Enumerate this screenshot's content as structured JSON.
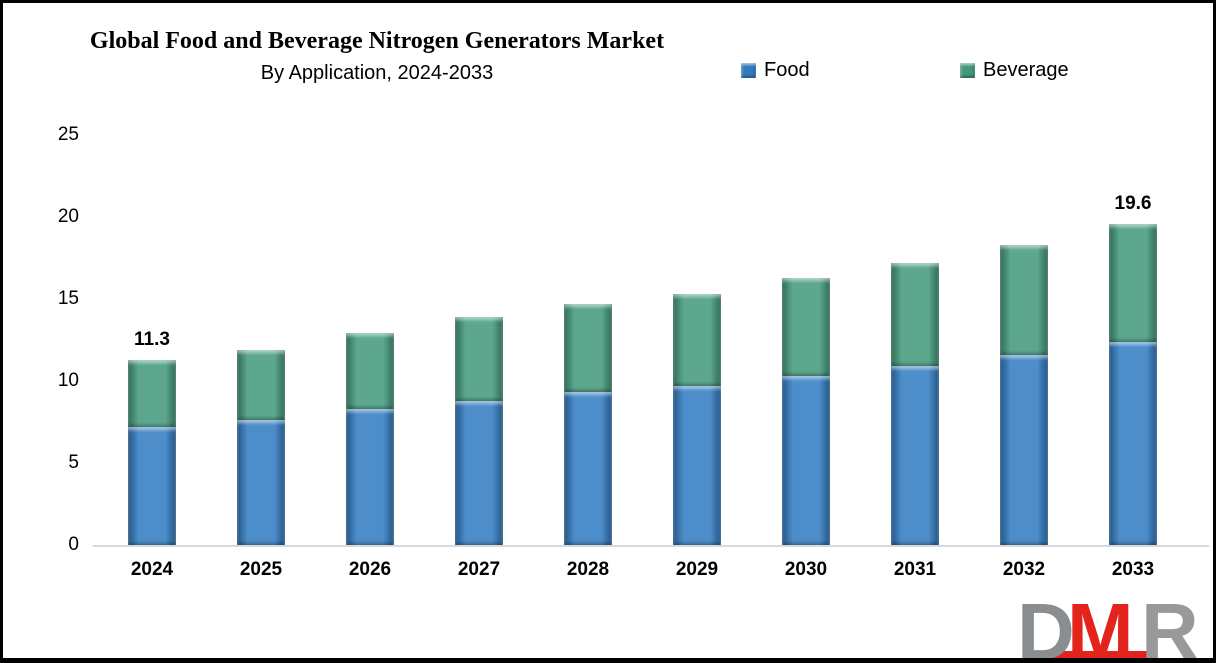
{
  "chart": {
    "title": "Global Food and Beverage Nitrogen Generators Market",
    "subtitle": "By Application, 2024-2033"
  },
  "chart_data": {
    "type": "bar",
    "stacked": true,
    "title": "Global Food and Beverage Nitrogen Generators Market",
    "subtitle": "By Application, 2024-2033",
    "categories": [
      "2024",
      "2025",
      "2026",
      "2027",
      "2028",
      "2029",
      "2030",
      "2031",
      "2032",
      "2033"
    ],
    "series": [
      {
        "name": "Food",
        "color": "#2F7AC1",
        "values": [
          7.2,
          7.6,
          8.3,
          8.8,
          9.3,
          9.7,
          10.3,
          10.9,
          11.6,
          12.4
        ]
      },
      {
        "name": "Beverage",
        "color": "#41997A",
        "values": [
          4.1,
          4.3,
          4.6,
          5.1,
          5.4,
          5.6,
          6.0,
          6.3,
          6.7,
          7.2
        ]
      }
    ],
    "totals": [
      11.3,
      11.9,
      12.9,
      13.9,
      14.7,
      15.3,
      16.3,
      17.2,
      18.3,
      19.6
    ],
    "xlabel": "",
    "ylabel": "",
    "ylim": [
      0,
      25
    ],
    "yticks": [
      0,
      5,
      10,
      15,
      20,
      25
    ],
    "grid": false,
    "legend_position": "top-right",
    "axis_line_color": "#D9D9D9",
    "annotations": [
      {
        "category": "2024",
        "text": "11.3"
      },
      {
        "category": "2033",
        "text": "19.6"
      }
    ]
  },
  "logo": {
    "letters": [
      {
        "text": "D",
        "color": "#8B8E90"
      },
      {
        "text": "M",
        "color": "#E2241D"
      },
      {
        "text": "R",
        "color": "#97999B"
      }
    ],
    "underline_color": "#E2241D"
  }
}
